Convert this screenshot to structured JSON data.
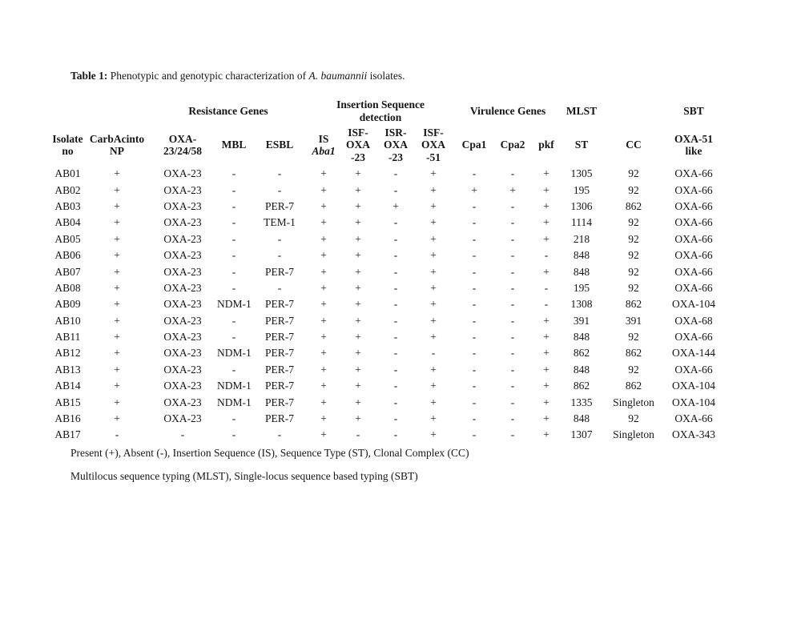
{
  "caption": {
    "label": "Table 1:",
    "before_italic": " Phenotypic and genotypic characterization of ",
    "italic": "A. baumannii",
    "after_italic": " isolates."
  },
  "table": {
    "group_headers": {
      "resistance": "Resistance Genes",
      "insertion": "Insertion Sequence\ndetection",
      "virulence": "Virulence Genes",
      "mlst": "MLST",
      "sbt": "SBT"
    },
    "columns": [
      "Isolate\nno",
      "CarbAcinto\nNP",
      "OXA-\n23/24/58",
      "MBL",
      "ESBL",
      {
        "line1": "IS",
        "line2": "Aba1"
      },
      "ISF-\nOXA\n-23",
      "ISR-\nOXA\n-23",
      "ISF-\nOXA\n-51",
      "Cpa1",
      "Cpa2",
      "pkf",
      "ST",
      "CC",
      "OXA-51\nlike"
    ],
    "rows": [
      [
        "AB01",
        "+",
        "OXA-23",
        "-",
        "-",
        "+",
        "+",
        "-",
        "+",
        "-",
        "-",
        "+",
        "1305",
        "92",
        "OXA-66"
      ],
      [
        "AB02",
        "+",
        "OXA-23",
        "-",
        "-",
        "+",
        "+",
        "-",
        "+",
        "+",
        "+",
        "+",
        "195",
        "92",
        "OXA-66"
      ],
      [
        "AB03",
        "+",
        "OXA-23",
        "-",
        "PER-7",
        "+",
        "+",
        "+",
        "+",
        "-",
        "-",
        "+",
        "1306",
        "862",
        "OXA-66"
      ],
      [
        "AB04",
        "+",
        "OXA-23",
        "-",
        "TEM-1",
        "+",
        "+",
        "-",
        "+",
        "-",
        "-",
        "+",
        "1114",
        "92",
        "OXA-66"
      ],
      [
        "AB05",
        "+",
        "OXA-23",
        "-",
        "-",
        "+",
        "+",
        "-",
        "+",
        "-",
        "-",
        "+",
        "218",
        "92",
        "OXA-66"
      ],
      [
        "AB06",
        "+",
        "OXA-23",
        "-",
        "-",
        "+",
        "+",
        "-",
        "+",
        "-",
        "-",
        "-",
        "848",
        "92",
        "OXA-66"
      ],
      [
        "AB07",
        "+",
        "OXA-23",
        "-",
        "PER-7",
        "+",
        "+",
        "-",
        "+",
        "-",
        "-",
        "+",
        "848",
        "92",
        "OXA-66"
      ],
      [
        "AB08",
        "+",
        "OXA-23",
        "-",
        "-",
        "+",
        "+",
        "-",
        "+",
        "-",
        "-",
        "-",
        "195",
        "92",
        "OXA-66"
      ],
      [
        "AB09",
        "+",
        "OXA-23",
        "NDM-1",
        "PER-7",
        "+",
        "+",
        "-",
        "+",
        "-",
        "-",
        "-",
        "1308",
        "862",
        "OXA-104"
      ],
      [
        "AB10",
        "+",
        "OXA-23",
        "-",
        "PER-7",
        "+",
        "+",
        "-",
        "+",
        "-",
        "-",
        "+",
        "391",
        "391",
        "OXA-68"
      ],
      [
        "AB11",
        "+",
        "OXA-23",
        "-",
        "PER-7",
        "+",
        "+",
        "-",
        "+",
        "-",
        "-",
        "+",
        "848",
        "92",
        "OXA-66"
      ],
      [
        "AB12",
        "+",
        "OXA-23",
        "NDM-1",
        "PER-7",
        "+",
        "+",
        "-",
        "-",
        "-",
        "-",
        "+",
        "862",
        "862",
        "OXA-144"
      ],
      [
        "AB13",
        "+",
        "OXA-23",
        "-",
        "PER-7",
        "+",
        "+",
        "-",
        "+",
        "-",
        "-",
        "+",
        "848",
        "92",
        "OXA-66"
      ],
      [
        "AB14",
        "+",
        "OXA-23",
        "NDM-1",
        "PER-7",
        "+",
        "+",
        "-",
        "+",
        "-",
        "-",
        "+",
        "862",
        "862",
        "OXA-104"
      ],
      [
        "AB15",
        "+",
        "OXA-23",
        "NDM-1",
        "PER-7",
        "+",
        "+",
        "-",
        "+",
        "-",
        "-",
        "+",
        "1335",
        "Singleton",
        "OXA-104"
      ],
      [
        "AB16",
        "+",
        "OXA-23",
        "-",
        "PER-7",
        "+",
        "+",
        "-",
        "+",
        "-",
        "-",
        "+",
        "848",
        "92",
        "OXA-66"
      ],
      [
        "AB17",
        "-",
        "-",
        "-",
        "-",
        "+",
        "-",
        "-",
        "+",
        "-",
        "-",
        "+",
        "1307",
        "Singleton",
        "OXA-343"
      ]
    ]
  },
  "footnotes": [
    "Present (+), Absent (-), Insertion Sequence (IS), Sequence Type (ST), Clonal Complex (CC)",
    "Multilocus sequence typing (MLST), Single-locus sequence based typing (SBT)"
  ]
}
